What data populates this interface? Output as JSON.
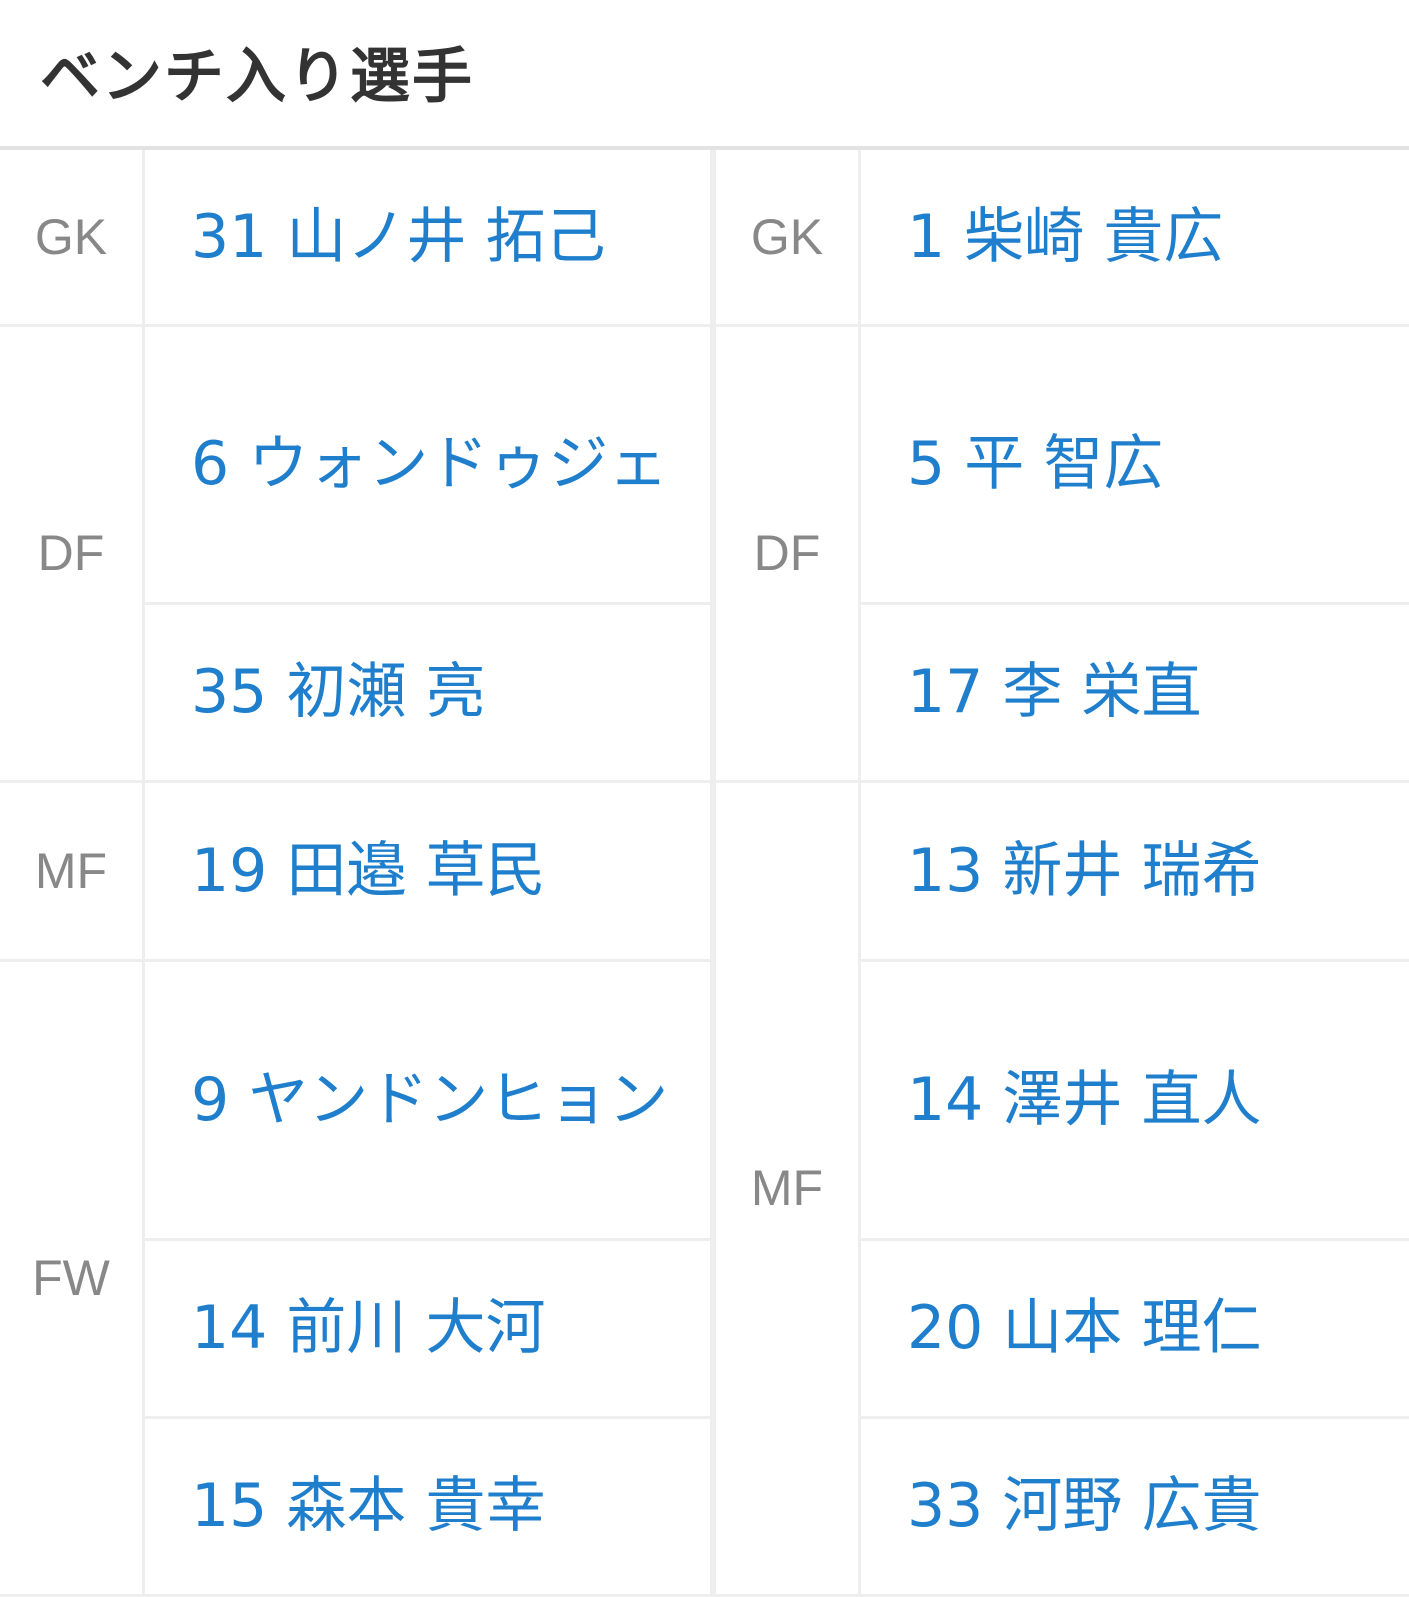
{
  "title": "ベンチ入り選手",
  "colors": {
    "name_link": "#1f7fcc",
    "position": "#888888",
    "border": "#eeeeee"
  },
  "home": {
    "groups": [
      {
        "position": "GK",
        "players": [
          "31 山ノ井 拓己"
        ]
      },
      {
        "position": "DF",
        "players": [
          "6 ウォンドゥジェ",
          "35 初瀬 亮"
        ]
      },
      {
        "position": "MF",
        "players": [
          "19 田邉 草民"
        ]
      },
      {
        "position": "FW",
        "players": [
          "9 ヤンドンヒョン",
          "14 前川 大河",
          "15 森本 貴幸"
        ]
      }
    ]
  },
  "away": {
    "groups": [
      {
        "position": "GK",
        "players": [
          "1 柴崎 貴広"
        ]
      },
      {
        "position": "DF",
        "players": [
          "5 平 智広",
          "17 李 栄直"
        ]
      },
      {
        "position": "MF",
        "players": [
          "13 新井 瑞希",
          "14 澤井 直人",
          "20 山本 理仁",
          "33 河野 広貴"
        ]
      }
    ]
  }
}
